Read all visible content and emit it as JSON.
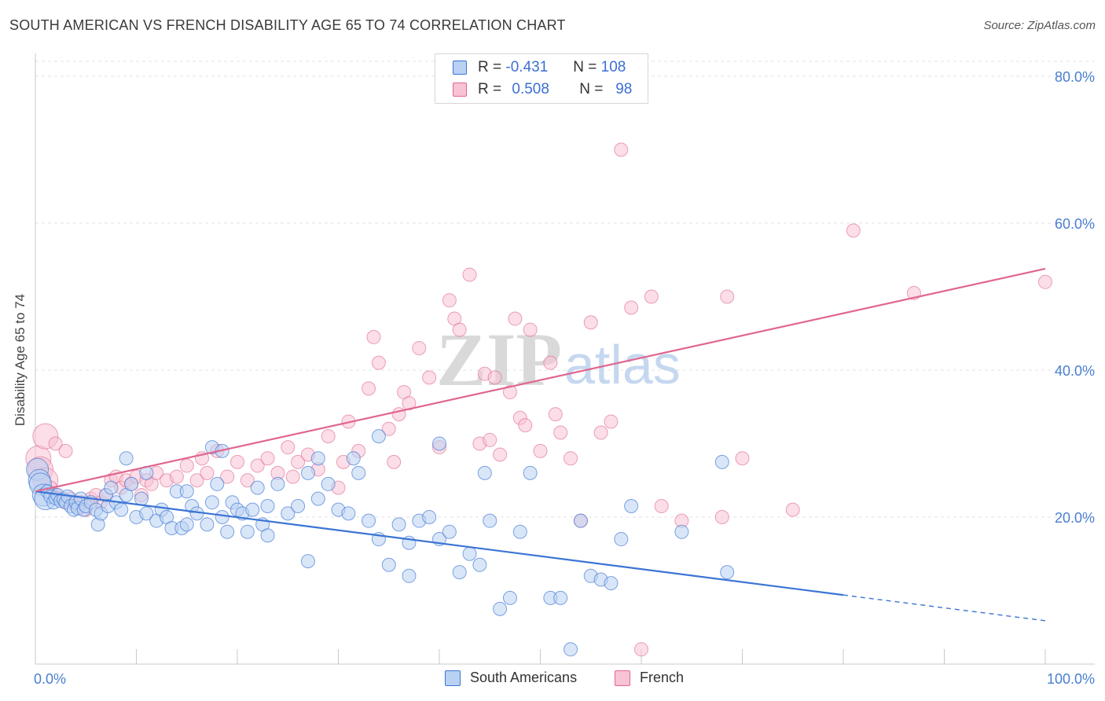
{
  "title": "SOUTH AMERICAN VS FRENCH DISABILITY AGE 65 TO 74 CORRELATION CHART",
  "source": "Source: ZipAtlas.com",
  "watermark": {
    "zip": "ZIP",
    "atlas": "atlas"
  },
  "legend": {
    "rows": [
      {
        "r_label": "R =",
        "r_value": "-0.431",
        "n_label": "N =",
        "n_value": "108"
      },
      {
        "r_label": "R =",
        "r_value": "0.508",
        "n_label": "N =",
        "n_value": "98"
      }
    ]
  },
  "bottom_legend": {
    "south": "South Americans",
    "french": "French"
  },
  "colors": {
    "blue": "#3b74d4",
    "blue_fill": "#b9d1f3",
    "pink": "#e0668f",
    "pink_fill": "#f8c3d4"
  },
  "chart_data": {
    "type": "scatter",
    "title": "SOUTH AMERICAN VS FRENCH DISABILITY AGE 65 TO 74 CORRELATION CHART",
    "xlabel": "",
    "ylabel": "Disability Age 65 to 74",
    "xlim": [
      0,
      100
    ],
    "ylim": [
      0,
      80
    ],
    "x_tick_labels": [
      "0.0%",
      "100.0%"
    ],
    "y_tick_labels": [
      "20.0%",
      "40.0%",
      "60.0%",
      "80.0%"
    ],
    "y_ticks": [
      20,
      40,
      60,
      80
    ],
    "grid": true,
    "series": [
      {
        "name": "South Americans",
        "r": -0.431,
        "n": 108,
        "trend": {
          "x0": 0,
          "y0": 23.5,
          "x1": 80,
          "y1": 9.4,
          "dash_to_x": 100,
          "dash_to_y": 5.9
        },
        "points": [
          [
            0.2,
            26.5
          ],
          [
            0.4,
            25
          ],
          [
            0.5,
            24.5
          ],
          [
            0.8,
            23
          ],
          [
            1,
            22.5
          ],
          [
            1.2,
            23.5
          ],
          [
            1.5,
            22.8
          ],
          [
            1.8,
            22
          ],
          [
            2,
            22.6
          ],
          [
            2.2,
            23
          ],
          [
            2.5,
            22.2
          ],
          [
            2.8,
            22.4
          ],
          [
            3,
            22
          ],
          [
            3.2,
            22.8
          ],
          [
            3.5,
            21.5
          ],
          [
            3.8,
            21
          ],
          [
            4,
            22
          ],
          [
            4.2,
            21.2
          ],
          [
            4.5,
            22.5
          ],
          [
            4.8,
            21
          ],
          [
            5,
            21.5
          ],
          [
            5.5,
            22
          ],
          [
            6,
            21
          ],
          [
            6.2,
            19
          ],
          [
            6.5,
            20.5
          ],
          [
            7,
            23
          ],
          [
            7.2,
            21.5
          ],
          [
            7.5,
            24
          ],
          [
            8,
            22
          ],
          [
            8.5,
            21
          ],
          [
            9,
            23
          ],
          [
            9.5,
            24.5
          ],
          [
            10,
            20
          ],
          [
            10.5,
            22.5
          ],
          [
            11,
            20.5
          ],
          [
            12,
            19.5
          ],
          [
            12.5,
            21
          ],
          [
            13,
            20
          ],
          [
            13.5,
            18.5
          ],
          [
            14,
            23.5
          ],
          [
            14.5,
            18.5
          ],
          [
            15,
            19
          ],
          [
            15.5,
            21.5
          ],
          [
            16,
            20.5
          ],
          [
            17,
            19
          ],
          [
            17.5,
            22
          ],
          [
            18,
            24.5
          ],
          [
            18.5,
            20
          ],
          [
            19,
            18
          ],
          [
            19.5,
            22
          ],
          [
            20,
            21
          ],
          [
            20.5,
            20.5
          ],
          [
            21,
            18
          ],
          [
            21.5,
            21
          ],
          [
            22,
            24
          ],
          [
            22.5,
            19
          ],
          [
            23,
            21.5
          ],
          [
            24,
            24.5
          ],
          [
            25,
            20.5
          ],
          [
            26,
            21.5
          ],
          [
            27,
            14
          ],
          [
            28,
            22.5
          ],
          [
            29,
            24.5
          ],
          [
            30,
            21
          ],
          [
            31,
            20.5
          ],
          [
            32,
            26
          ],
          [
            33,
            19.5
          ],
          [
            34,
            17
          ],
          [
            35,
            13.5
          ],
          [
            36,
            19
          ],
          [
            37,
            12
          ],
          [
            38,
            19.5
          ],
          [
            39,
            20
          ],
          [
            40,
            17
          ],
          [
            41,
            18
          ],
          [
            42,
            12.5
          ],
          [
            43,
            15
          ],
          [
            44,
            13.5
          ],
          [
            45,
            19.5
          ],
          [
            46,
            7.5
          ],
          [
            47,
            9
          ],
          [
            48,
            18
          ],
          [
            49,
            26
          ],
          [
            51,
            9
          ],
          [
            52,
            9
          ],
          [
            53,
            2
          ],
          [
            54,
            19.5
          ],
          [
            55,
            12
          ],
          [
            56,
            11.5
          ],
          [
            57,
            11
          ],
          [
            58,
            17
          ],
          [
            59,
            21.5
          ],
          [
            64,
            18
          ],
          [
            68,
            27.5
          ],
          [
            68.5,
            12.5
          ],
          [
            17.5,
            29.5
          ],
          [
            18.5,
            29
          ],
          [
            31.5,
            28
          ],
          [
            27,
            26
          ],
          [
            34,
            31
          ],
          [
            40,
            30
          ],
          [
            44.5,
            26
          ],
          [
            28,
            28
          ],
          [
            15,
            23.5
          ],
          [
            11,
            26
          ],
          [
            9,
            28
          ],
          [
            23,
            17.5
          ],
          [
            37,
            16.5
          ]
        ]
      },
      {
        "name": "French",
        "r": 0.508,
        "n": 98,
        "trend": {
          "x0": 0,
          "y0": 23.5,
          "x1": 100,
          "y1": 53.8
        },
        "points": [
          [
            0.3,
            28
          ],
          [
            0.5,
            26.5
          ],
          [
            1,
            25
          ],
          [
            1.5,
            24
          ],
          [
            2,
            23
          ],
          [
            2.5,
            22.5
          ],
          [
            3,
            22
          ],
          [
            3.5,
            22.5
          ],
          [
            4,
            21.5
          ],
          [
            4.5,
            22
          ],
          [
            5,
            21
          ],
          [
            5.5,
            22.5
          ],
          [
            6,
            23
          ],
          [
            6.5,
            22
          ],
          [
            7,
            23
          ],
          [
            7.5,
            25
          ],
          [
            8,
            25.5
          ],
          [
            8.5,
            24
          ],
          [
            9,
            25
          ],
          [
            9.5,
            24.5
          ],
          [
            10,
            25.5
          ],
          [
            10.5,
            23
          ],
          [
            11,
            25
          ],
          [
            11.5,
            24.5
          ],
          [
            12,
            26
          ],
          [
            13,
            25
          ],
          [
            14,
            25.5
          ],
          [
            15,
            27
          ],
          [
            16,
            25
          ],
          [
            16.5,
            28
          ],
          [
            17,
            26
          ],
          [
            18,
            29
          ],
          [
            19,
            25.5
          ],
          [
            20,
            27.5
          ],
          [
            21,
            25
          ],
          [
            22,
            27
          ],
          [
            23,
            28
          ],
          [
            24,
            26
          ],
          [
            25,
            29.5
          ],
          [
            25.5,
            25.5
          ],
          [
            26,
            27.5
          ],
          [
            27,
            28.5
          ],
          [
            28,
            26.5
          ],
          [
            29,
            31
          ],
          [
            30,
            24
          ],
          [
            30.5,
            27.5
          ],
          [
            31,
            33
          ],
          [
            32,
            29
          ],
          [
            33,
            37.5
          ],
          [
            33.5,
            44.5
          ],
          [
            34,
            41
          ],
          [
            35,
            32
          ],
          [
            35.5,
            27.5
          ],
          [
            36,
            34
          ],
          [
            36.5,
            37
          ],
          [
            37,
            35.5
          ],
          [
            38,
            43
          ],
          [
            39,
            39
          ],
          [
            40,
            29.5
          ],
          [
            41,
            49.5
          ],
          [
            41.5,
            47
          ],
          [
            42,
            45.5
          ],
          [
            43,
            53
          ],
          [
            44,
            30
          ],
          [
            44.5,
            39.5
          ],
          [
            45,
            30.5
          ],
          [
            45.5,
            39
          ],
          [
            46,
            28.5
          ],
          [
            47,
            37
          ],
          [
            47.5,
            47
          ],
          [
            48,
            33.5
          ],
          [
            48.5,
            32.5
          ],
          [
            49,
            45.5
          ],
          [
            50,
            29
          ],
          [
            51,
            41
          ],
          [
            51.5,
            34
          ],
          [
            52,
            31.5
          ],
          [
            53,
            28
          ],
          [
            54,
            19.5
          ],
          [
            55,
            46.5
          ],
          [
            56,
            31.5
          ],
          [
            57,
            33
          ],
          [
            58,
            70
          ],
          [
            59,
            48.5
          ],
          [
            60,
            2
          ],
          [
            61,
            50
          ],
          [
            62,
            21.5
          ],
          [
            64,
            19.5
          ],
          [
            68,
            20
          ],
          [
            68.5,
            50
          ],
          [
            70,
            28
          ],
          [
            75,
            21
          ],
          [
            81,
            59
          ],
          [
            87,
            50.5
          ],
          [
            100,
            52
          ],
          [
            1,
            31
          ],
          [
            2,
            30
          ],
          [
            3,
            29
          ]
        ]
      }
    ]
  }
}
